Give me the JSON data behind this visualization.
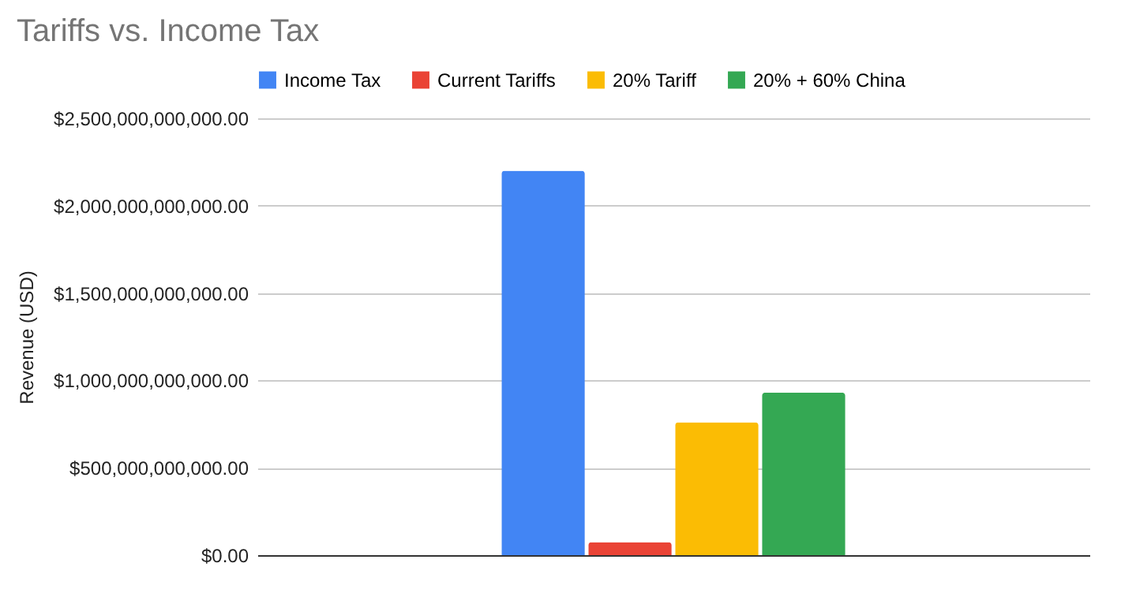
{
  "chart_data": {
    "type": "bar",
    "title": "Tariffs vs. Income Tax",
    "ylabel": "Revenue (USD)",
    "categories": [
      null
    ],
    "series": [
      {
        "name": "Income Tax",
        "color": "#4285f4",
        "values": [
          2200000000000
        ]
      },
      {
        "name": "Current Tariffs",
        "color": "#ea4335",
        "values": [
          74000000000
        ]
      },
      {
        "name": "20% Tariff",
        "color": "#fbbc04",
        "values": [
          760000000000
        ]
      },
      {
        "name": "20% + 60% China",
        "color": "#34a853",
        "values": [
          930000000000
        ]
      }
    ],
    "ylim": [
      0,
      2500000000000
    ],
    "yticks": [
      {
        "value": 0,
        "label": "$0.00"
      },
      {
        "value": 500000000000,
        "label": "$500,000,000,000.00"
      },
      {
        "value": 1000000000000,
        "label": "$1,000,000,000,000.00"
      },
      {
        "value": 1500000000000,
        "label": "$1,500,000,000,000.00"
      },
      {
        "value": 2000000000000,
        "label": "$2,000,000,000,000.00"
      },
      {
        "value": 2500000000000,
        "label": "$2,500,000,000,000.00"
      }
    ],
    "grid": "y",
    "legend": "top"
  }
}
